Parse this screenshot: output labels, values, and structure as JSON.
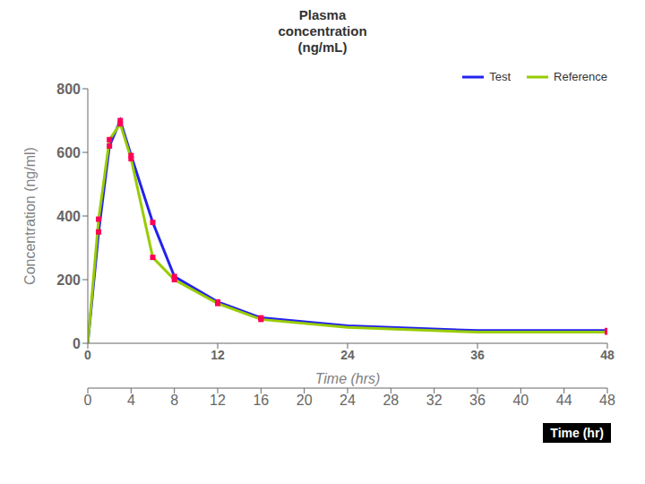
{
  "chart_data": {
    "type": "line",
    "title": "Plasma\nconcentration\n(ng/mL)",
    "xlabel": "Time (hrs)",
    "ylabel": "Concentration (ng/ml)",
    "annotations": [
      "Time (hr)"
    ],
    "x": [
      0,
      1,
      2,
      3,
      4,
      6,
      8,
      12,
      16,
      24,
      36,
      48
    ],
    "xlim": [
      0,
      48
    ],
    "xticks": [
      0,
      4,
      8,
      12,
      16,
      20,
      24,
      28,
      32,
      36,
      40,
      44,
      48
    ],
    "x2lim": [
      0,
      48
    ],
    "x2ticks": [
      0,
      12,
      24,
      36,
      48
    ],
    "ylim": [
      0,
      800
    ],
    "yticks": [
      0,
      200,
      400,
      600,
      800
    ],
    "grid": false,
    "legend": "upper right",
    "series": [
      {
        "name": "Test",
        "color": "#2222ee",
        "values": [
          0,
          350,
          620,
          700,
          590,
          380,
          210,
          130,
          80,
          55,
          40,
          40
        ]
      },
      {
        "name": "Reference",
        "color": "#99cc00",
        "values": [
          0,
          390,
          640,
          690,
          580,
          270,
          200,
          125,
          75,
          50,
          35,
          35
        ]
      },
      {
        "type": "scatter",
        "color": "#ff0055",
        "marker": "square",
        "values": [
          null,
          350,
          620,
          700,
          590,
          380,
          210,
          130,
          80,
          null,
          null,
          40
        ]
      },
      {
        "type": "scatter",
        "color": "#ff0055",
        "marker": "square",
        "values": [
          null,
          390,
          640,
          690,
          580,
          270,
          200,
          125,
          75,
          null,
          null,
          35
        ]
      }
    ]
  }
}
